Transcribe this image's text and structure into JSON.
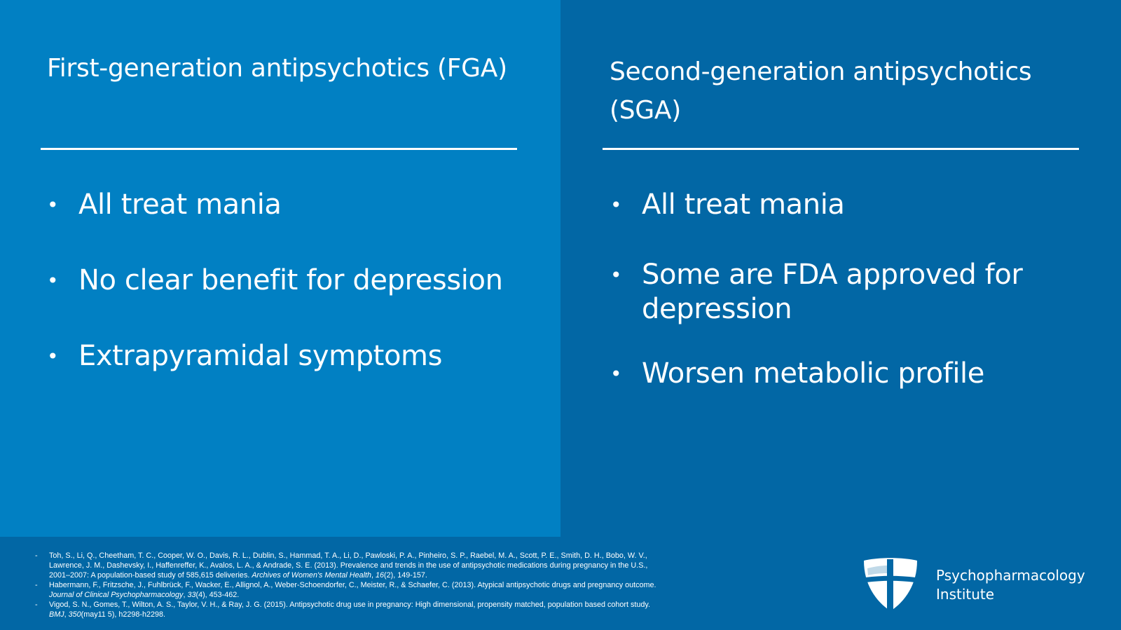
{
  "left": {
    "heading": "First-generation antipsychotics (FGA)",
    "bullets": [
      "All treat mania",
      "No clear benefit for depression",
      "Extrapyramidal symptoms"
    ]
  },
  "right": {
    "heading": "Second-generation antipsychotics (SGA)",
    "bullets": [
      "All treat mania",
      "Some are FDA approved for depression",
      "Worsen metabolic profile"
    ]
  },
  "bullet_glyph": "•",
  "references": {
    "marker": "-",
    "items": [
      {
        "before": "Toh, S., Li, Q., Cheetham, T. C., Cooper, W. O., Davis, R. L., Dublin, S., Hammad, T. A., Li, D., Pawloski, P. A., Pinheiro, S. P., Raebel, M. A., Scott, P. E., Smith, D. H., Bobo, W. V., Lawrence, J. M., Dashevsky, I., Haffenreffer, K., Avalos, L. A., & Andrade, S. E. (2013). Prevalence and trends in the use of antipsychotic medications during pregnancy in the U.S., 2001–2007: A population-based study of 585,615 deliveries. ",
        "italic": "Archives of Women's Mental Health",
        "mid": ", ",
        "italic2": "16",
        "after": "(2), 149-157."
      },
      {
        "before": "Habermann, F., Fritzsche, J., Fuhlbrück, F., Wacker, E., Allignol, A., Weber-Schoendorfer, C., Meister, R., & Schaefer, C. (2013). Atypical antipsychotic drugs and pregnancy outcome. ",
        "italic": "Journal of Clinical Psychopharmacology",
        "mid": ", ",
        "italic2": "33",
        "after": "(4), 453-462."
      },
      {
        "before": "Vigod, S. N., Gomes, T., Wilton, A. S., Taylor, V. H., & Ray, J. G. (2015). Antipsychotic drug use in pregnancy: High dimensional, propensity matched, population based cohort study. ",
        "italic": "BMJ",
        "mid": ", ",
        "italic2": "350",
        "after": "(may11 5), h2298-h2298."
      }
    ]
  },
  "brand": {
    "line1": "Psychopharmacology",
    "line2": "Institute",
    "logo_icon": "shield-cross-icon"
  },
  "colors": {
    "left_panel": "#0180c3",
    "right_panel": "#0267a5",
    "footer": "#0267a5",
    "text": "#ffffff"
  }
}
